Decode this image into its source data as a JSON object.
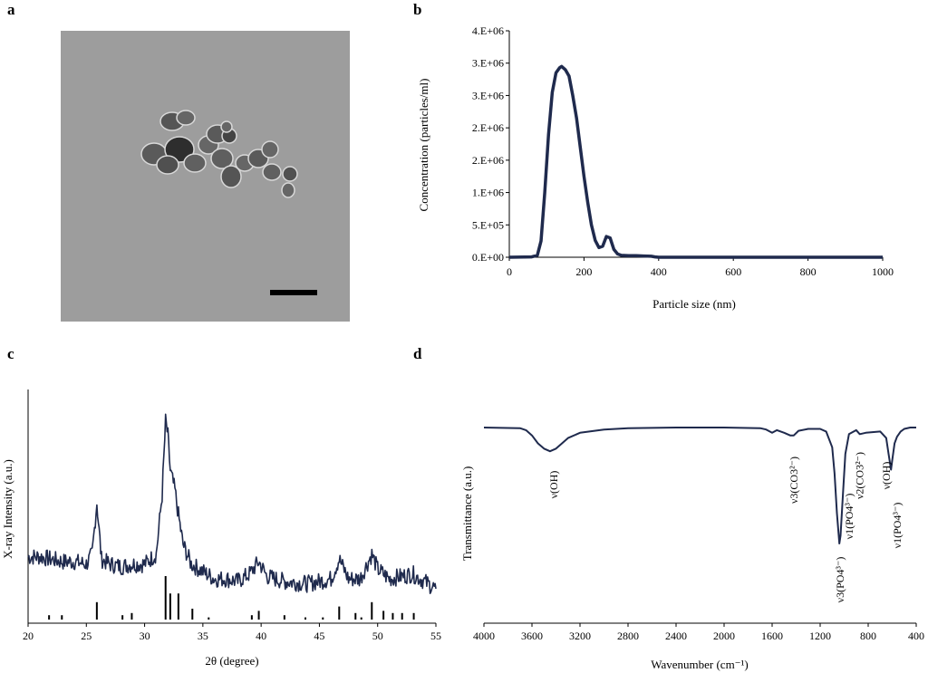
{
  "panels": {
    "a": {
      "letter": "a",
      "image_type": "TEM micrograph",
      "colors": {
        "background": "#9c9c9c",
        "particles": "#4a4a4a",
        "scale_bar": "#000000"
      }
    },
    "b": {
      "letter": "b"
    },
    "c": {
      "letter": "c"
    },
    "d": {
      "letter": "d"
    }
  },
  "chart_data": [
    {
      "id": "b",
      "type": "line",
      "xlabel": "Particle size (nm)",
      "ylabel": "Concentration  (particles/ml)",
      "xlim": [
        0,
        1000
      ],
      "ylim": [
        0,
        3500000
      ],
      "x_ticks": [
        "0",
        "200",
        "400",
        "600",
        "800",
        "1000"
      ],
      "y_ticks": [
        "0.E+00",
        "5.E+05",
        "1.E+06",
        "2.E+06",
        "2.E+06",
        "3.E+06",
        "3.E+06",
        "4.E+06"
      ],
      "grid": false,
      "color": "#1f2a4d",
      "series": [
        {
          "x": [
            0,
            60,
            75,
            85,
            95,
            105,
            115,
            125,
            135,
            140,
            150,
            160,
            170,
            180,
            190,
            200,
            210,
            220,
            230,
            240,
            250,
            260,
            270,
            280,
            290,
            300,
            320,
            340,
            360,
            380,
            390,
            400,
            600,
            800,
            1000
          ],
          "y": [
            0,
            5000,
            30000,
            250000,
            1000000,
            1900000,
            2550000,
            2850000,
            2930000,
            2950000,
            2900000,
            2800000,
            2500000,
            2150000,
            1700000,
            1250000,
            850000,
            500000,
            260000,
            150000,
            170000,
            320000,
            300000,
            120000,
            50000,
            30000,
            25000,
            25000,
            20000,
            15000,
            5000,
            0,
            0,
            0,
            0
          ]
        }
      ]
    },
    {
      "id": "c",
      "type": "line",
      "xlabel": "2θ (degree)",
      "ylabel": "X-ray Intensity (a.u.)",
      "xlim": [
        20,
        55
      ],
      "x_ticks": [
        "20",
        "25",
        "30",
        "35",
        "40",
        "45",
        "50",
        "55"
      ],
      "grid": false,
      "color": "#1f2a4d",
      "series": [
        {
          "x": [
            20,
            21,
            22,
            23,
            24,
            25,
            25.5,
            25.9,
            26.3,
            27,
            28,
            29,
            30,
            31,
            31.5,
            31.8,
            32.0,
            32.2,
            32.6,
            32.9,
            33.3,
            34,
            35,
            36,
            37,
            38,
            39,
            39.8,
            40.5,
            42,
            44,
            46,
            46.7,
            47.5,
            48.5,
            49.5,
            50,
            51,
            52,
            53,
            54,
            55
          ],
          "y": [
            33,
            33,
            32,
            31,
            31,
            30,
            34,
            55,
            32,
            30,
            29,
            30,
            30,
            34,
            58,
            88,
            82,
            68,
            60,
            50,
            38,
            30,
            27,
            24,
            24,
            23,
            26,
            31,
            25,
            23,
            22,
            24,
            32,
            24,
            24,
            34,
            28,
            24,
            25,
            26,
            23,
            20
          ]
        }
      ],
      "reference_peaks": [
        {
          "x": 21.8,
          "h": 2
        },
        {
          "x": 22.9,
          "h": 2
        },
        {
          "x": 25.9,
          "h": 8
        },
        {
          "x": 28.1,
          "h": 2
        },
        {
          "x": 28.9,
          "h": 3
        },
        {
          "x": 31.8,
          "h": 20
        },
        {
          "x": 32.2,
          "h": 12
        },
        {
          "x": 32.9,
          "h": 12
        },
        {
          "x": 34.1,
          "h": 5
        },
        {
          "x": 35.5,
          "h": 1
        },
        {
          "x": 39.2,
          "h": 2
        },
        {
          "x": 39.8,
          "h": 4
        },
        {
          "x": 42.0,
          "h": 2
        },
        {
          "x": 43.8,
          "h": 1
        },
        {
          "x": 45.3,
          "h": 1
        },
        {
          "x": 46.7,
          "h": 6
        },
        {
          "x": 48.1,
          "h": 3
        },
        {
          "x": 48.6,
          "h": 1
        },
        {
          "x": 49.5,
          "h": 8
        },
        {
          "x": 50.5,
          "h": 4
        },
        {
          "x": 51.3,
          "h": 3
        },
        {
          "x": 52.1,
          "h": 3
        },
        {
          "x": 53.1,
          "h": 3
        }
      ]
    },
    {
      "id": "d",
      "type": "line",
      "xlabel": "Wavenumber (cm⁻¹)",
      "ylabel": "Transmittance (a.u.)",
      "xlim": [
        4000,
        400
      ],
      "x_reversed": true,
      "x_ticks": [
        "4000",
        "3600",
        "3200",
        "2800",
        "2400",
        "2000",
        "1600",
        "1200",
        "800",
        "400"
      ],
      "grid": false,
      "color": "#1f2a4d",
      "series": [
        {
          "x": [
            4000,
            3700,
            3650,
            3600,
            3550,
            3500,
            3450,
            3400,
            3350,
            3300,
            3200,
            3000,
            2800,
            2400,
            2000,
            1700,
            1650,
            1600,
            1560,
            1500,
            1450,
            1420,
            1380,
            1300,
            1200,
            1150,
            1100,
            1080,
            1060,
            1040,
            1030,
            1010,
            990,
            960,
            900,
            870,
            820,
            700,
            650,
            630,
            610,
            600,
            580,
            560,
            530,
            500,
            450,
            400
          ],
          "y": [
            100,
            99.5,
            98,
            94,
            88,
            84,
            82,
            84,
            88,
            92,
            96,
            98.5,
            99.5,
            100,
            100,
            99.5,
            98.5,
            96,
            98,
            96,
            94,
            94,
            97.5,
            99,
            99,
            97,
            85,
            65,
            35,
            12,
            18,
            50,
            80,
            95,
            98,
            95,
            96,
            97,
            92,
            80,
            68,
            75,
            88,
            93,
            97,
            99,
            100,
            100
          ]
        }
      ],
      "annotations": [
        "ν(OH)",
        "ν3(CO3²⁻)",
        "ν3(PO4³⁻)",
        "ν1(PO4³⁻)",
        "ν2(CO3²⁻)",
        "ν(OH)",
        "ν1(PO4³⁻)"
      ]
    }
  ]
}
